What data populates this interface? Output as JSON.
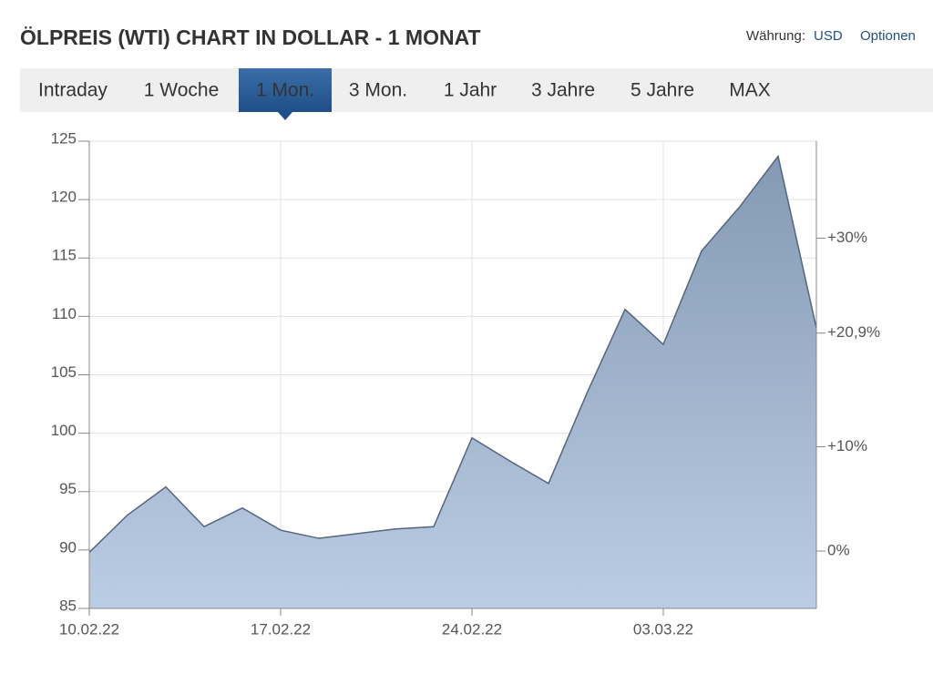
{
  "header": {
    "title": "ÖLPREIS (WTI) CHART IN DOLLAR - 1 MONAT",
    "currency_label": "Währung:",
    "currency": "USD",
    "options": "Optionen"
  },
  "tabs": {
    "items": [
      "Intraday",
      "1 Woche",
      "1 Mon.",
      "3 Mon.",
      "1 Jahr",
      "3 Jahre",
      "5 Jahre",
      "MAX"
    ],
    "active": 2
  },
  "chart_data": {
    "type": "area",
    "categories": [
      "10.02.22",
      null,
      null,
      null,
      null,
      "17.02.22",
      null,
      null,
      null,
      null,
      "24.02.22",
      null,
      null,
      null,
      null,
      "03.03.22",
      null,
      null,
      null,
      null
    ],
    "values": [
      89.8,
      93.0,
      95.4,
      92.0,
      93.6,
      91.7,
      91.0,
      91.4,
      91.8,
      92.0,
      99.6,
      97.6,
      95.7,
      103.4,
      110.6,
      107.6,
      115.6,
      119.4,
      123.7,
      109.0
    ],
    "line_color": "#55657d",
    "fill_top": "#8499b3",
    "fill_bottom": "#bacde4",
    "ylim": [
      85,
      125
    ],
    "yticks": [
      85,
      90,
      95,
      100,
      105,
      110,
      115,
      120,
      125
    ],
    "y2lim": [
      -5.5,
      39.3
    ],
    "y2ticks": [
      {
        "value": 0,
        "label": "0%"
      },
      {
        "value": 10,
        "label": "+10%"
      },
      {
        "value": 30,
        "label": "+30%"
      }
    ],
    "current_change": {
      "value": 20.9,
      "label": "+20,9%",
      "color": "#3a9a3a"
    },
    "grid": true
  }
}
